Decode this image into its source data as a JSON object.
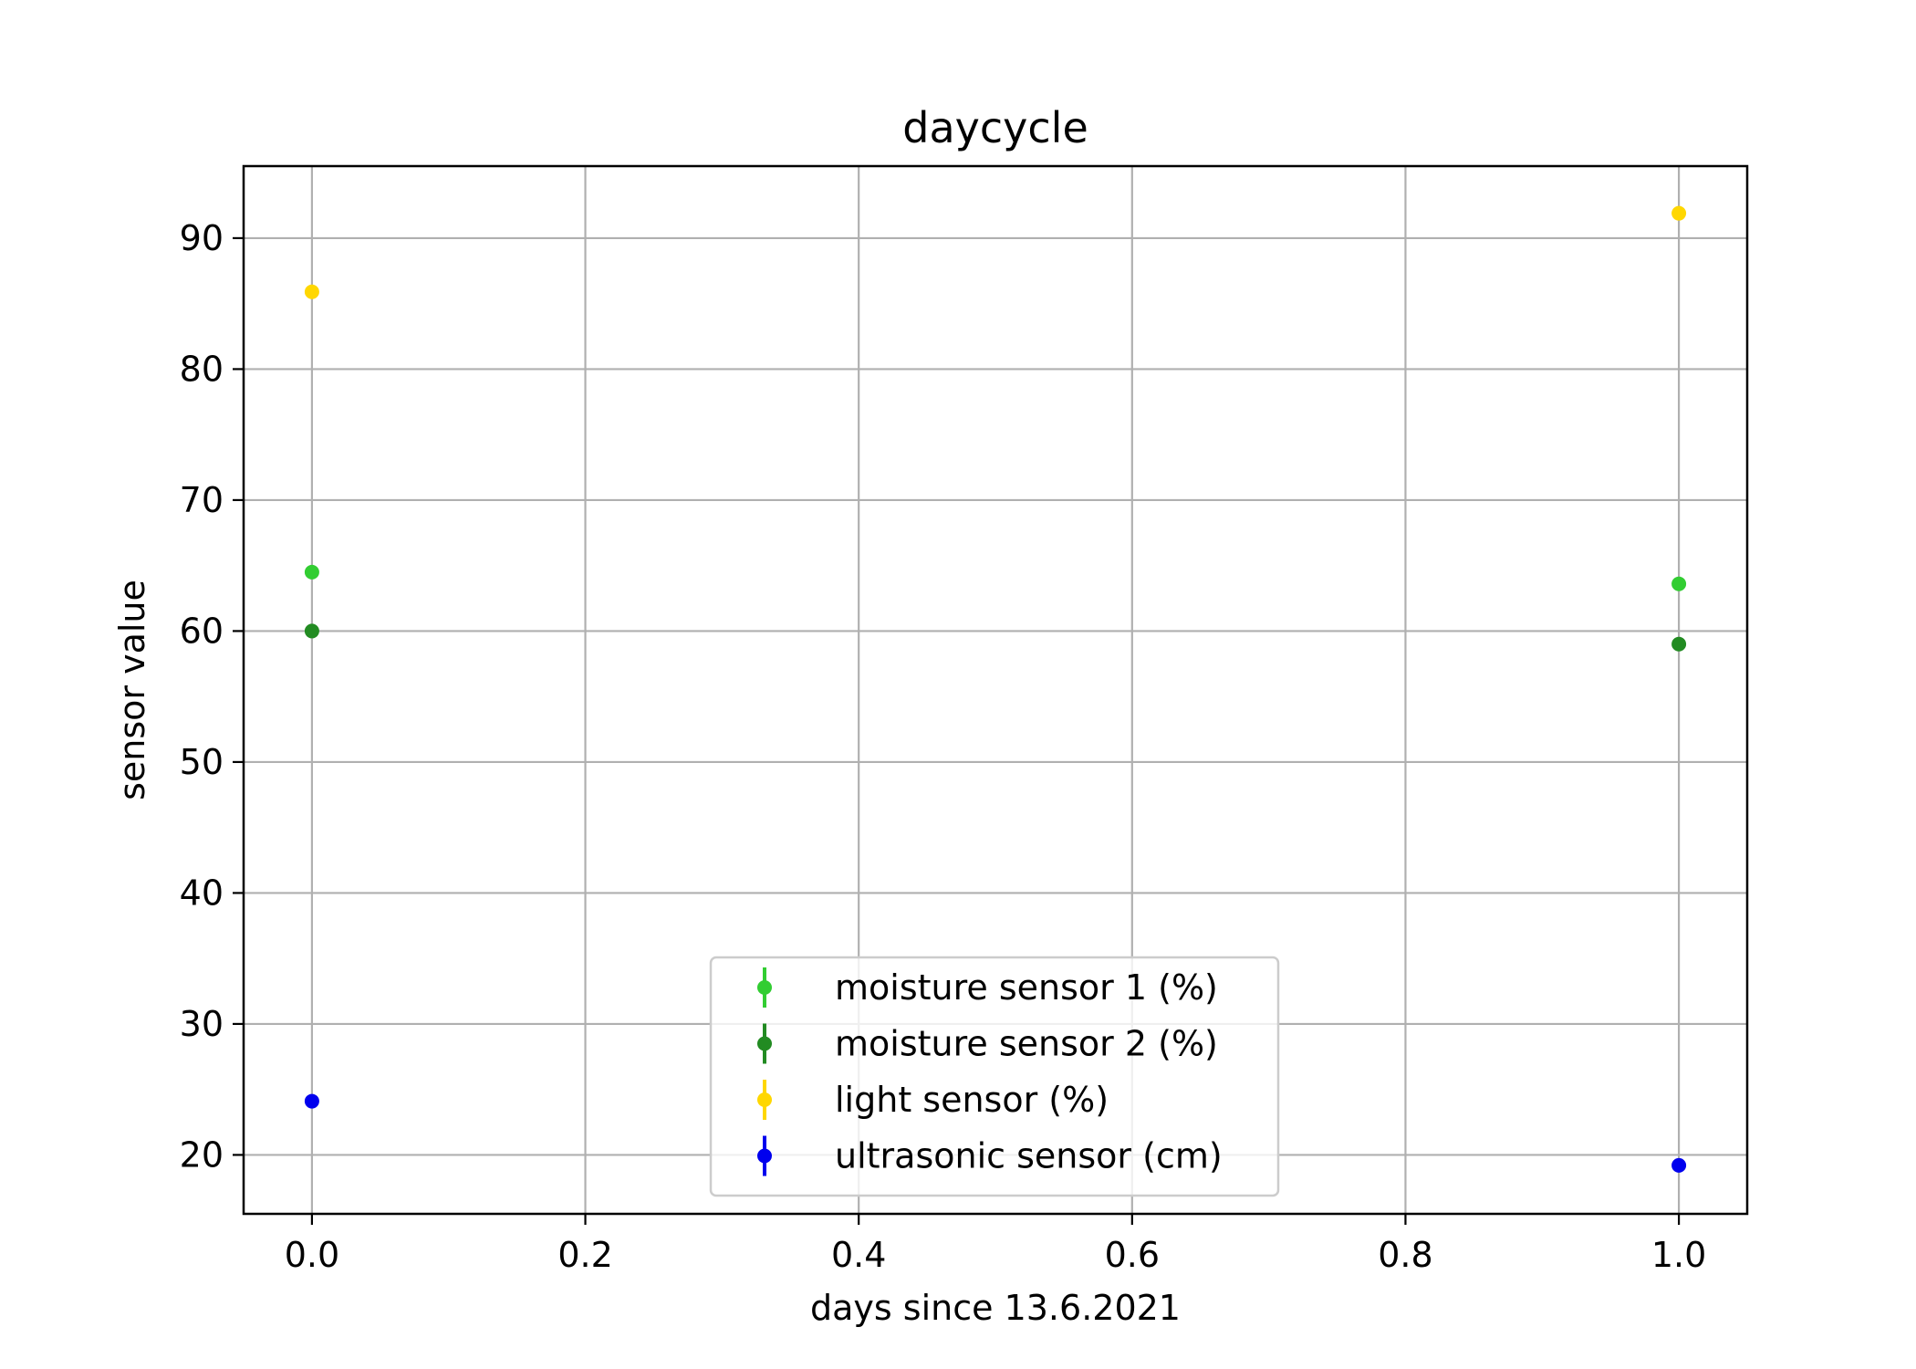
{
  "chart_data": {
    "type": "scatter",
    "title": "daycycle",
    "xlabel": "days since 13.6.2021",
    "ylabel": "sensor value",
    "xlim": [
      -0.05,
      1.05
    ],
    "ylim": [
      15.5,
      95.5
    ],
    "xticks": [
      0.0,
      0.2,
      0.4,
      0.6,
      0.8,
      1.0
    ],
    "xtick_labels": [
      "0.0",
      "0.2",
      "0.4",
      "0.6",
      "0.8",
      "1.0"
    ],
    "yticks": [
      20,
      30,
      40,
      50,
      60,
      70,
      80,
      90
    ],
    "ytick_labels": [
      "20",
      "30",
      "40",
      "50",
      "60",
      "70",
      "80",
      "90"
    ],
    "grid": true,
    "legend_position": "lower-center",
    "series": [
      {
        "name": "moisture sensor 1 (%)",
        "color": "#32cd32",
        "x": [
          0.0,
          1.0
        ],
        "y": [
          64.5,
          63.6
        ]
      },
      {
        "name": "moisture sensor 2 (%)",
        "color": "#228b22",
        "x": [
          0.0,
          1.0
        ],
        "y": [
          60.0,
          59.0
        ]
      },
      {
        "name": "light sensor (%)",
        "color": "#ffd700",
        "x": [
          0.0,
          1.0
        ],
        "y": [
          85.9,
          91.9
        ]
      },
      {
        "name": "ultrasonic sensor (cm)",
        "color": "#0000ee",
        "x": [
          0.0,
          1.0
        ],
        "y": [
          24.1,
          19.2
        ]
      }
    ]
  }
}
